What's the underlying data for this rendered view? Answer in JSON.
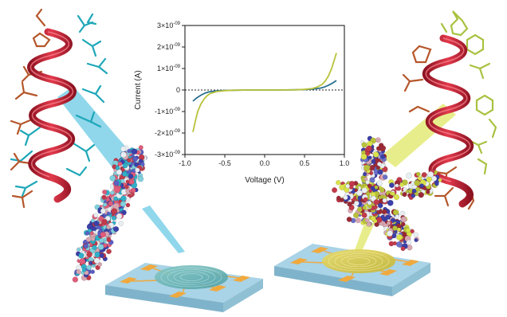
{
  "chart_data": {
    "type": "line",
    "title": "",
    "xlabel": "Voltage (V)",
    "ylabel": "Current (A)",
    "xlim": [
      -1.0,
      1.0
    ],
    "ylim": [
      -3e-09,
      3e-09
    ],
    "x_ticks": [
      {
        "value": -1.0,
        "label": "-1.0"
      },
      {
        "value": -0.5,
        "label": "-0.5"
      },
      {
        "value": 0.0,
        "label": "0.0"
      },
      {
        "value": 0.5,
        "label": "0.5"
      },
      {
        "value": 1.0,
        "label": "1.0"
      }
    ],
    "y_ticks": [
      {
        "value": 3e-09,
        "mant": "3×10",
        "exp": "-09"
      },
      {
        "value": 2e-09,
        "mant": "2×10",
        "exp": "-09"
      },
      {
        "value": 1e-09,
        "mant": "1×10",
        "exp": "-09"
      },
      {
        "value": 0,
        "mant": "0",
        "exp": ""
      },
      {
        "value": -1e-09,
        "mant": "-1×10",
        "exp": "-09"
      },
      {
        "value": -2e-09,
        "mant": "-2×10",
        "exp": "-09"
      },
      {
        "value": -3e-09,
        "mant": "-3×10",
        "exp": "-09"
      }
    ],
    "zero_reference_line": "dotted",
    "grid": false,
    "legend": "none",
    "series": [
      {
        "color": "#2a6f8f",
        "x": [
          -0.9,
          -0.85,
          -0.8,
          -0.75,
          -0.7,
          -0.6,
          -0.5,
          -0.4,
          -0.2,
          0.0,
          0.2,
          0.4,
          0.5,
          0.6,
          0.7,
          0.75,
          0.8,
          0.85,
          0.9
        ],
        "y": [
          -5.2e-10,
          -3.6e-10,
          -2.4e-10,
          -1.5e-10,
          -9e-11,
          -4e-11,
          -2e-11,
          -1e-11,
          0,
          0,
          0,
          1e-11,
          2e-11,
          4e-11,
          9e-11,
          1.4e-10,
          2.2e-10,
          3.2e-10,
          4.4e-10
        ]
      },
      {
        "color": "#b8c23a",
        "x": [
          -0.9,
          -0.87,
          -0.84,
          -0.8,
          -0.76,
          -0.72,
          -0.68,
          -0.6,
          -0.5,
          -0.4,
          -0.2,
          0.0,
          0.2,
          0.4,
          0.5,
          0.6,
          0.66,
          0.72,
          0.76,
          0.8,
          0.84,
          0.87,
          0.9
        ],
        "y": [
          -1.95e-09,
          -1.45e-09,
          -1e-09,
          -6.5e-10,
          -4.2e-10,
          -2.6e-10,
          -1.6e-10,
          -7e-11,
          -3e-11,
          -1e-11,
          0,
          0,
          0,
          1e-11,
          3e-11,
          7e-11,
          1.4e-10,
          2.6e-10,
          4.2e-10,
          6.5e-10,
          1e-09,
          1.35e-09,
          1.72e-09
        ]
      }
    ]
  },
  "illustration": {
    "left_peptide": {
      "helix_color": "#d42a3c",
      "sidechain_color": "#1ea7b8",
      "residue_color": "#b5562a"
    },
    "right_peptide": {
      "helix_color": "#d42a3c",
      "sidechain_color": "#a9c240",
      "residue_color": "#b5562a"
    },
    "left_beam_color": "#35b6dc",
    "right_beam_color": "#d6df2b",
    "left_device": {
      "substrate_color": "#a9d3e6",
      "pad_color": "#f0a93e",
      "film_color": "#5fb1b3"
    },
    "right_device": {
      "substrate_color": "#a9d3e6",
      "pad_color": "#f0a93e",
      "film_color": "#d8c64a"
    }
  }
}
